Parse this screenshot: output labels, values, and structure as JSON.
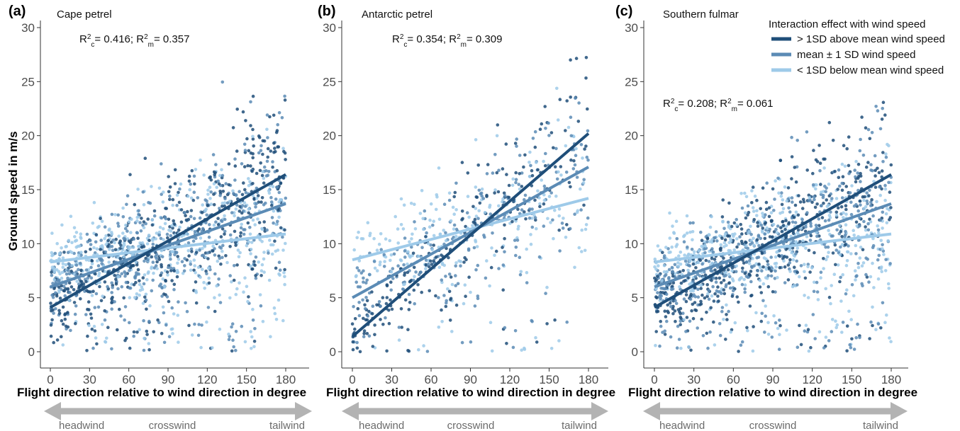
{
  "axes": {
    "ylabel": "Ground speed in m/s",
    "xlabel": "Flight direction relative to wind direction in degree",
    "x_ticks": [
      "0",
      "30",
      "60",
      "90",
      "120",
      "150",
      "180"
    ],
    "y_ticks": [
      "0",
      "5",
      "10",
      "15",
      "20",
      "25",
      "30"
    ]
  },
  "direction_arrow": {
    "left": "headwind",
    "center": "crosswind",
    "right": "tailwind"
  },
  "legend": {
    "title": "Interaction effect with wind speed",
    "placement": "top-right",
    "items": [
      {
        "label": "> 1SD above mean wind speed",
        "color": "#1f4e79"
      },
      {
        "label": "mean ± 1 SD wind speed",
        "color": "#5b8bb5"
      },
      {
        "label": "< 1SD below mean wind speed",
        "color": "#9ecae9"
      }
    ]
  },
  "colors": {
    "high": "#1f4e79",
    "mid": "#5b8bb5",
    "low": "#9ecae9",
    "arrow": "#b3b3b3"
  },
  "chart_data": [
    {
      "type": "scatter",
      "panel": "(a)",
      "title": "Cape petrel",
      "stats": {
        "r2c": "0.416",
        "r2m": "0.357"
      },
      "xlim": [
        -5,
        185
      ],
      "ylim": [
        -1,
        31
      ],
      "point_count": 1400,
      "series": [
        {
          "name": "> 1SD above mean wind speed",
          "x": [
            0,
            180
          ],
          "y": [
            4.1,
            16.4
          ]
        },
        {
          "name": "mean ± 1 SD wind speed",
          "x": [
            0,
            180
          ],
          "y": [
            6.0,
            13.7
          ]
        },
        {
          "name": "< 1SD below mean wind speed",
          "x": [
            0,
            180
          ],
          "y": [
            8.3,
            10.9
          ]
        }
      ]
    },
    {
      "type": "scatter",
      "panel": "(b)",
      "title": "Antarctic petrel",
      "stats": {
        "r2c": "0.354",
        "r2m": "0.309"
      },
      "xlim": [
        -5,
        185
      ],
      "ylim": [
        -1,
        31
      ],
      "point_count": 700,
      "series": [
        {
          "name": "> 1SD above mean wind speed",
          "x": [
            0,
            180
          ],
          "y": [
            1.4,
            20.2
          ]
        },
        {
          "name": "mean ± 1 SD wind speed",
          "x": [
            0,
            180
          ],
          "y": [
            5.0,
            17.1
          ]
        },
        {
          "name": "< 1SD below mean wind speed",
          "x": [
            0,
            180
          ],
          "y": [
            8.5,
            14.2
          ]
        }
      ]
    },
    {
      "type": "scatter",
      "panel": "(c)",
      "title": "Southern fulmar",
      "stats": {
        "r2c": "0.208",
        "r2m": "0.061"
      },
      "xlim": [
        -5,
        185
      ],
      "ylim": [
        -1,
        31
      ],
      "point_count": 1400,
      "series": [
        {
          "name": "> 1SD above mean wind speed",
          "x": [
            0,
            180
          ],
          "y": [
            4.1,
            16.4
          ]
        },
        {
          "name": "mean ± 1 SD wind speed",
          "x": [
            0,
            180
          ],
          "y": [
            6.0,
            13.7
          ]
        },
        {
          "name": "< 1SD below mean wind speed",
          "x": [
            0,
            180
          ],
          "y": [
            8.3,
            10.9
          ]
        }
      ]
    }
  ]
}
